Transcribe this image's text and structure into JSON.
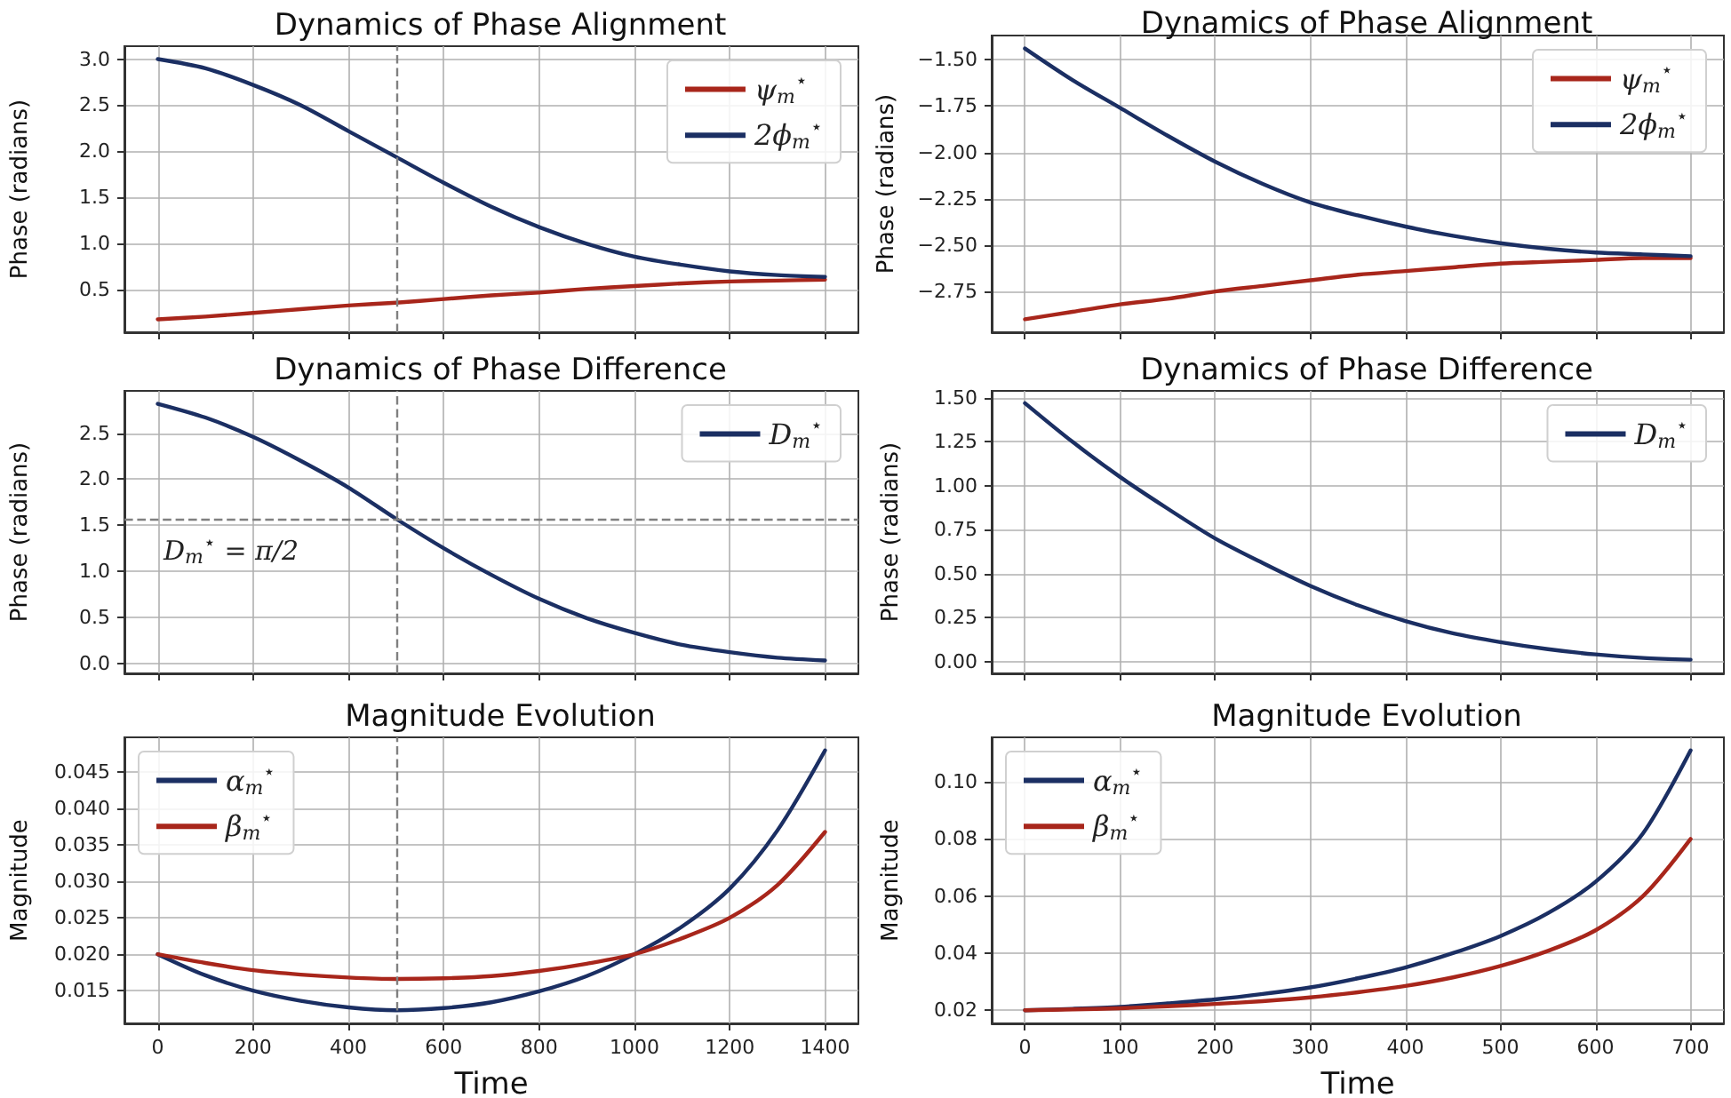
{
  "chart_data": [
    {
      "type": "line",
      "title": "Dynamics of Phase Alignment",
      "ylabel": "Phase (radians)",
      "xlim": [
        -70,
        1470
      ],
      "xticks": [
        0,
        200,
        400,
        600,
        800,
        1000,
        1200,
        1400
      ],
      "ylim": [
        0.04,
        3.14
      ],
      "yticks": [
        0.5,
        {
          "value": 1,
          "label": "1.0"
        },
        1.5,
        {
          "value": 2,
          "label": "2.0"
        },
        2.5,
        {
          "value": 3,
          "label": "3.0"
        }
      ],
      "tick_labels": "y",
      "grid": true,
      "legend": "top right",
      "line_style": "solid",
      "marker": "none",
      "x": [
        0,
        100,
        200,
        300,
        400,
        500,
        600,
        700,
        800,
        900,
        1000,
        1100,
        1200,
        1300,
        1400
      ],
      "series": [
        {
          "name": "ψ$_{m}$$^{⋆}$",
          "color": "#a8261b",
          "values": [
            0.18,
            0.21,
            0.25,
            0.29,
            0.33,
            0.36,
            0.4,
            0.44,
            0.47,
            0.51,
            0.54,
            0.57,
            0.59,
            0.6,
            0.61
          ]
        },
        {
          "name": "2ϕ$_{m}$$^{⋆}$",
          "color": "#1b2f63",
          "values": [
            3.0,
            2.9,
            2.72,
            2.5,
            2.22,
            1.94,
            1.66,
            1.4,
            1.18,
            1.0,
            0.86,
            0.77,
            0.7,
            0.66,
            0.64
          ]
        }
      ],
      "ref_lines": [
        {
          "axis": "x",
          "value": 500,
          "color": "#808080",
          "line_style": "dashed"
        }
      ]
    },
    {
      "type": "line",
      "title": "Dynamics of Phase Difference",
      "ylabel": "Phase (radians)",
      "xlim": [
        -70,
        1470
      ],
      "xticks": [
        0,
        200,
        400,
        600,
        800,
        1000,
        1200,
        1400
      ],
      "ylim": [
        -0.11,
        2.96
      ],
      "yticks": [
        {
          "value": 0,
          "label": "0.0"
        },
        0.5,
        {
          "value": 1,
          "label": "1.0"
        },
        1.5,
        {
          "value": 2,
          "label": "2.0"
        },
        2.5
      ],
      "tick_labels": "y",
      "grid": true,
      "legend": "top right",
      "line_style": "solid",
      "marker": "none",
      "x": [
        0,
        100,
        200,
        300,
        400,
        500,
        600,
        700,
        800,
        900,
        1000,
        1100,
        1200,
        1300,
        1400
      ],
      "series": [
        {
          "name": "D$_{m}$$^{⋆}$",
          "color": "#1b2f63",
          "values": [
            2.82,
            2.67,
            2.46,
            2.2,
            1.91,
            1.57,
            1.25,
            0.96,
            0.7,
            0.49,
            0.33,
            0.2,
            0.12,
            0.06,
            0.03
          ]
        }
      ],
      "ref_lines": [
        {
          "axis": "x",
          "value": 500,
          "color": "#808080",
          "line_style": "dashed"
        },
        {
          "axis": "y",
          "value": 1.5708,
          "label": "D$_{m}$$^{⋆}$ = π/2",
          "color": "#808080",
          "line_style": "dashed"
        }
      ]
    },
    {
      "type": "line",
      "title": "Magnitude Evolution",
      "xlabel": "Time",
      "ylabel": "Magnitude",
      "xlim": [
        -70,
        1470
      ],
      "xticks": [
        0,
        200,
        400,
        600,
        800,
        1000,
        1200,
        1400
      ],
      "ylim": [
        0.0105,
        0.0498
      ],
      "yticks": [
        0.015,
        {
          "value": 0.02,
          "label": "0.020"
        },
        0.025,
        {
          "value": 0.03,
          "label": "0.030"
        },
        0.035,
        {
          "value": 0.04,
          "label": "0.040"
        },
        0.045
      ],
      "grid": true,
      "legend": "top left",
      "line_style": "solid",
      "marker": "none",
      "x": [
        0,
        100,
        200,
        300,
        400,
        500,
        600,
        700,
        800,
        900,
        1000,
        1100,
        1200,
        1300,
        1400
      ],
      "series": [
        {
          "name": "α$_{m}$$^{⋆}$",
          "color": "#1b2f63",
          "values": [
            0.02,
            0.0171,
            0.015,
            0.0136,
            0.0127,
            0.0123,
            0.0126,
            0.0134,
            0.0149,
            0.017,
            0.02,
            0.0238,
            0.029,
            0.037,
            0.048
          ]
        },
        {
          "name": "β$_{m}$$^{⋆}$",
          "color": "#a8261b",
          "values": [
            0.02,
            0.0188,
            0.0178,
            0.0172,
            0.0168,
            0.0166,
            0.0167,
            0.017,
            0.0177,
            0.0187,
            0.02,
            0.0222,
            0.025,
            0.0295,
            0.0368
          ]
        }
      ],
      "ref_lines": [
        {
          "axis": "x",
          "value": 500,
          "color": "#808080",
          "line_style": "dashed"
        }
      ]
    },
    {
      "type": "line",
      "title": "Dynamics of Phase Alignment",
      "ylabel": "Phase (radians)",
      "xlim": [
        -35,
        735
      ],
      "xticks": [
        0,
        100,
        200,
        300,
        400,
        500,
        600,
        700
      ],
      "ylim": [
        -2.97,
        -1.37
      ],
      "yticks": [
        -2.75,
        {
          "value": -2.5,
          "label": "−2.50"
        },
        -2.25,
        {
          "value": -2,
          "label": "−2.00"
        },
        -1.75,
        {
          "value": -1.5,
          "label": "−1.50"
        }
      ],
      "tick_labels": "y",
      "grid": true,
      "legend": "top right",
      "line_style": "solid",
      "marker": "none",
      "x": [
        0,
        50,
        100,
        150,
        200,
        250,
        300,
        350,
        400,
        450,
        500,
        550,
        600,
        650,
        700
      ],
      "series": [
        {
          "name": "ψ$_{m}$$^{⋆}$",
          "color": "#a8261b",
          "values": [
            -2.9,
            -2.86,
            -2.82,
            -2.79,
            -2.75,
            -2.72,
            -2.69,
            -2.66,
            -2.64,
            -2.62,
            -2.6,
            -2.59,
            -2.58,
            -2.57,
            -2.57
          ]
        },
        {
          "name": "2ϕ$_{m}$$^{⋆}$",
          "color": "#1b2f63",
          "values": [
            -1.44,
            -1.61,
            -1.76,
            -1.91,
            -2.05,
            -2.17,
            -2.27,
            -2.34,
            -2.4,
            -2.45,
            -2.49,
            -2.52,
            -2.54,
            -2.55,
            -2.56
          ]
        }
      ]
    },
    {
      "type": "line",
      "title": "Dynamics of Phase Difference",
      "ylabel": "Phase (radians)",
      "xlim": [
        -35,
        735
      ],
      "xticks": [
        0,
        100,
        200,
        300,
        400,
        500,
        600,
        700
      ],
      "ylim": [
        -0.068,
        1.54
      ],
      "yticks": [
        {
          "value": 0,
          "label": "0.00"
        },
        0.25,
        {
          "value": 0.5,
          "label": "0.50"
        },
        0.75,
        {
          "value": 1,
          "label": "1.00"
        },
        1.25,
        {
          "value": 1.5,
          "label": "1.50"
        }
      ],
      "tick_labels": "y",
      "grid": true,
      "legend": "top right",
      "line_style": "solid",
      "marker": "none",
      "x": [
        0,
        50,
        100,
        150,
        200,
        250,
        300,
        350,
        400,
        450,
        500,
        550,
        600,
        650,
        700
      ],
      "series": [
        {
          "name": "D$_{m}$$^{⋆}$",
          "color": "#1b2f63",
          "values": [
            1.47,
            1.25,
            1.05,
            0.87,
            0.7,
            0.56,
            0.43,
            0.32,
            0.23,
            0.16,
            0.11,
            0.07,
            0.04,
            0.02,
            0.01
          ]
        }
      ]
    },
    {
      "type": "line",
      "title": "Magnitude Evolution",
      "xlabel": "Time",
      "ylabel": "Magnitude",
      "xlim": [
        -35,
        735
      ],
      "xticks": [
        0,
        100,
        200,
        300,
        400,
        500,
        600,
        700
      ],
      "ylim": [
        0.0154,
        0.1156
      ],
      "yticks": [
        0.02,
        0.04,
        0.06,
        0.08,
        {
          "value": 0.1,
          "label": "0.10"
        }
      ],
      "grid": true,
      "legend": "top left",
      "line_style": "solid",
      "marker": "none",
      "x": [
        0,
        50,
        100,
        150,
        200,
        250,
        300,
        350,
        400,
        450,
        500,
        550,
        600,
        650,
        700
      ],
      "series": [
        {
          "name": "α$_{m}$$^{⋆}$",
          "color": "#1b2f63",
          "values": [
            0.02,
            0.0205,
            0.0212,
            0.0224,
            0.0238,
            0.0257,
            0.028,
            0.0312,
            0.035,
            0.04,
            0.046,
            0.054,
            0.065,
            0.082,
            0.111
          ]
        },
        {
          "name": "β$_{m}$$^{⋆}$",
          "color": "#a8261b",
          "values": [
            0.02,
            0.0203,
            0.0207,
            0.0214,
            0.0222,
            0.0232,
            0.0245,
            0.0263,
            0.0285,
            0.0315,
            0.0355,
            0.0408,
            0.048,
            0.06,
            0.08
          ]
        }
      ]
    }
  ]
}
